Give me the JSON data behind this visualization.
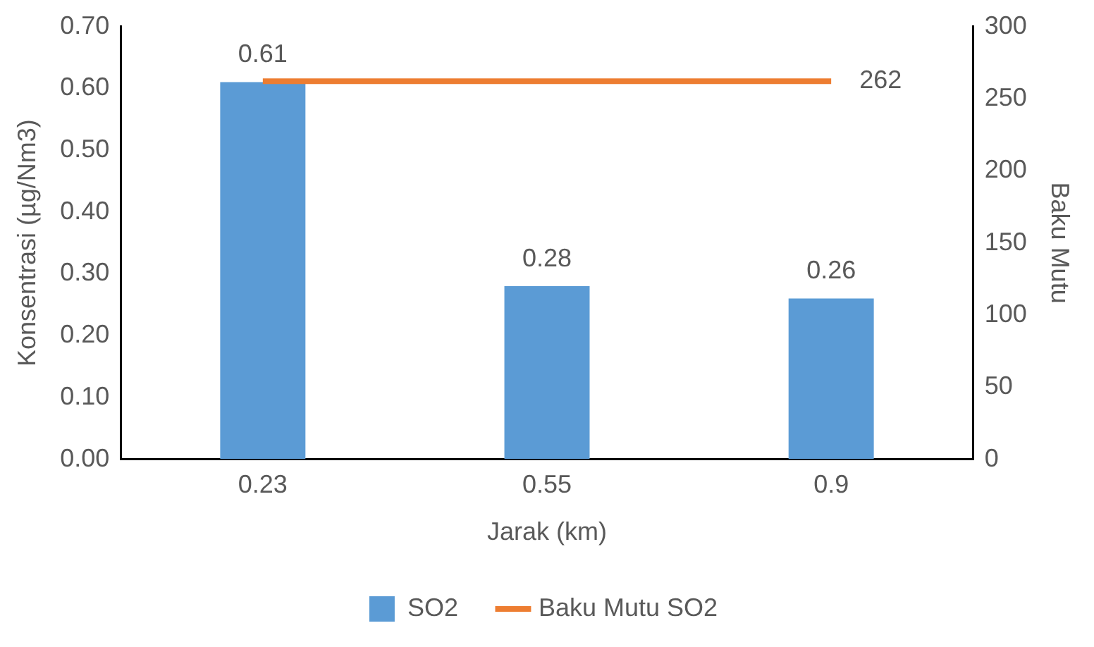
{
  "chart_data": {
    "type": "bar",
    "xlabel": "Jarak (km)",
    "ylabel": "Konsentrasi (µg/Nm3)",
    "y2label": "Baku Mutu",
    "categories": [
      "0.23",
      "0.55",
      "0.9"
    ],
    "series": [
      {
        "name": "SO2",
        "color": "#5b9bd5",
        "values": [
          0.61,
          0.28,
          0.26
        ],
        "value_labels": [
          "0.61",
          "0.28",
          "0.26"
        ]
      },
      {
        "name": "Baku Mutu SO2",
        "type": "line",
        "axis": "y2",
        "color": "#ed7d31",
        "marker": "none",
        "values": [
          262,
          262,
          262
        ],
        "value_labels": [
          null,
          null,
          "262"
        ]
      }
    ],
    "ylim": [
      0,
      0.7
    ],
    "yticks": [
      {
        "value": 0,
        "label": "0.00"
      },
      {
        "value": 0.1,
        "label": "0.10"
      },
      {
        "value": 0.2,
        "label": "0.20"
      },
      {
        "value": 0.3,
        "label": "0.30"
      },
      {
        "value": 0.4,
        "label": "0.40"
      },
      {
        "value": 0.5,
        "label": "0.50"
      },
      {
        "value": 0.6,
        "label": "0.60"
      },
      {
        "value": 0.7,
        "label": "0.70"
      }
    ],
    "y2lim": [
      0,
      300
    ],
    "y2ticks": [
      0,
      50,
      100,
      150,
      200,
      250,
      300
    ],
    "grid": false,
    "legend": "bottom"
  }
}
